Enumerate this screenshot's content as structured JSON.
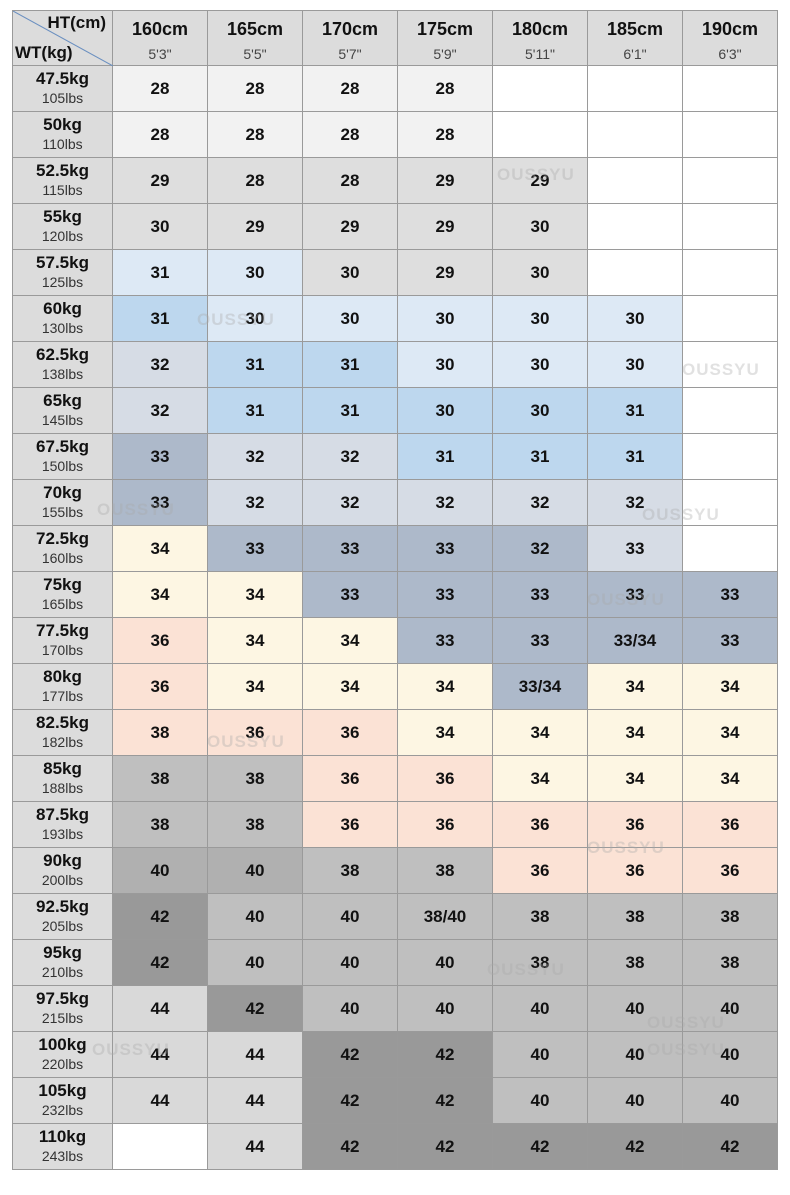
{
  "corner": {
    "height_label": "HT(cm)",
    "weight_label": "WT(kg)"
  },
  "columns": [
    {
      "cm": "160cm",
      "ft": "5'3\""
    },
    {
      "cm": "165cm",
      "ft": "5'5\""
    },
    {
      "cm": "170cm",
      "ft": "5'7\""
    },
    {
      "cm": "175cm",
      "ft": "5'9\""
    },
    {
      "cm": "180cm",
      "ft": "5'11\""
    },
    {
      "cm": "185cm",
      "ft": "6'1\""
    },
    {
      "cm": "190cm",
      "ft": "6'3\""
    }
  ],
  "rows": [
    {
      "kg": "47.5kg",
      "lbs": "105lbs",
      "cells": [
        28,
        28,
        28,
        28,
        null,
        null,
        null
      ]
    },
    {
      "kg": "50kg",
      "lbs": "110lbs",
      "cells": [
        28,
        28,
        28,
        28,
        null,
        null,
        null
      ]
    },
    {
      "kg": "52.5kg",
      "lbs": "115lbs",
      "cells": [
        29,
        28,
        28,
        29,
        29,
        null,
        null
      ]
    },
    {
      "kg": "55kg",
      "lbs": "120lbs",
      "cells": [
        30,
        29,
        29,
        29,
        30,
        null,
        null
      ]
    },
    {
      "kg": "57.5kg",
      "lbs": "125lbs",
      "cells": [
        31,
        30,
        30,
        29,
        30,
        null,
        null
      ]
    },
    {
      "kg": "60kg",
      "lbs": "130lbs",
      "cells": [
        31,
        30,
        30,
        30,
        30,
        30,
        null
      ]
    },
    {
      "kg": "62.5kg",
      "lbs": "138lbs",
      "cells": [
        32,
        31,
        31,
        30,
        30,
        30,
        null
      ]
    },
    {
      "kg": "65kg",
      "lbs": "145lbs",
      "cells": [
        32,
        31,
        31,
        30,
        30,
        31,
        null
      ]
    },
    {
      "kg": "67.5kg",
      "lbs": "150lbs",
      "cells": [
        33,
        32,
        32,
        31,
        31,
        31,
        null
      ]
    },
    {
      "kg": "70kg",
      "lbs": "155lbs",
      "cells": [
        33,
        32,
        32,
        32,
        32,
        32,
        null
      ]
    },
    {
      "kg": "72.5kg",
      "lbs": "160lbs",
      "cells": [
        34,
        33,
        33,
        33,
        32,
        33,
        null
      ]
    },
    {
      "kg": "75kg",
      "lbs": "165lbs",
      "cells": [
        34,
        34,
        33,
        33,
        33,
        33,
        33
      ]
    },
    {
      "kg": "77.5kg",
      "lbs": "170lbs",
      "cells": [
        36,
        34,
        34,
        33,
        33,
        "33/34",
        33
      ]
    },
    {
      "kg": "80kg",
      "lbs": "177lbs",
      "cells": [
        36,
        34,
        34,
        34,
        "33/34",
        34,
        34
      ]
    },
    {
      "kg": "82.5kg",
      "lbs": "182lbs",
      "cells": [
        38,
        36,
        36,
        34,
        34,
        34,
        34
      ]
    },
    {
      "kg": "85kg",
      "lbs": "188lbs",
      "cells": [
        38,
        38,
        36,
        36,
        34,
        34,
        34
      ]
    },
    {
      "kg": "87.5kg",
      "lbs": "193lbs",
      "cells": [
        38,
        38,
        36,
        36,
        36,
        36,
        36
      ]
    },
    {
      "kg": "90kg",
      "lbs": "200lbs",
      "cells": [
        40,
        40,
        38,
        38,
        36,
        36,
        36
      ]
    },
    {
      "kg": "92.5kg",
      "lbs": "205lbs",
      "cells": [
        42,
        40,
        40,
        "38/40",
        38,
        38,
        38
      ]
    },
    {
      "kg": "95kg",
      "lbs": "210lbs",
      "cells": [
        42,
        40,
        40,
        40,
        38,
        38,
        38
      ]
    },
    {
      "kg": "97.5kg",
      "lbs": "215lbs",
      "cells": [
        44,
        42,
        40,
        40,
        40,
        40,
        40
      ]
    },
    {
      "kg": "100kg",
      "lbs": "220lbs",
      "cells": [
        44,
        44,
        42,
        42,
        40,
        40,
        40
      ]
    },
    {
      "kg": "105kg",
      "lbs": "232lbs",
      "cells": [
        44,
        44,
        42,
        42,
        40,
        40,
        40
      ]
    },
    {
      "kg": "110kg",
      "lbs": "243lbs",
      "cells": [
        null,
        44,
        42,
        42,
        42,
        42,
        42
      ]
    }
  ],
  "watermark": "OUSSYU"
}
